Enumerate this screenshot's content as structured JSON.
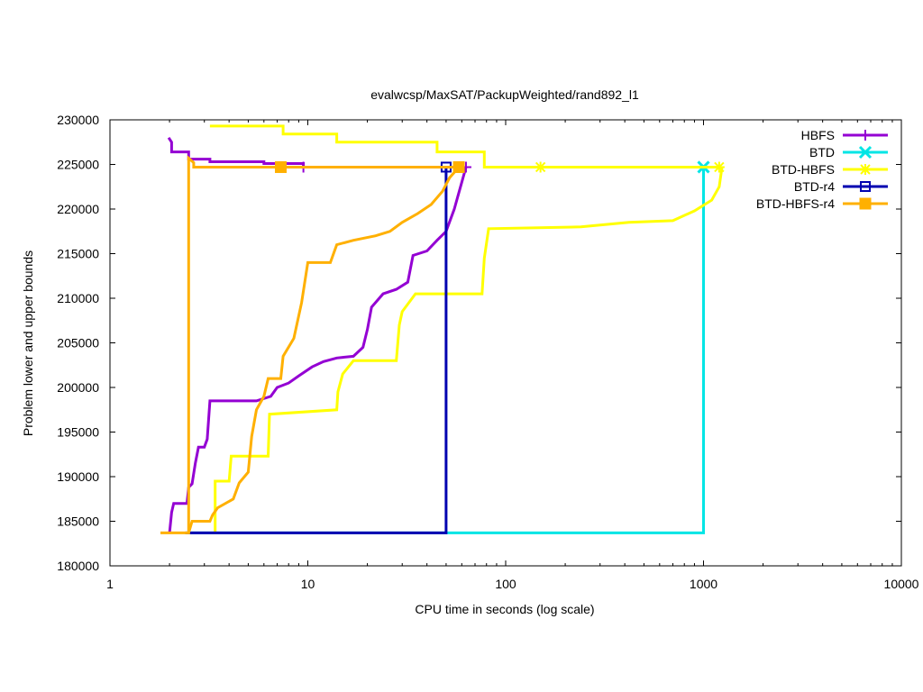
{
  "chart_data": {
    "type": "line",
    "title": "evalwcsp/MaxSAT/PackupWeighted/rand892_l1",
    "xlabel": "CPU time in seconds (log scale)",
    "ylabel": "Problem lower and upper bounds",
    "x_scale": "log",
    "xlim": [
      1,
      10000
    ],
    "ylim": [
      180000,
      230000
    ],
    "x_ticks": [
      1,
      10,
      100,
      1000,
      10000
    ],
    "x_tick_labels": [
      "1",
      "10",
      "100",
      "1000",
      "10000"
    ],
    "y_ticks": [
      180000,
      185000,
      190000,
      195000,
      200000,
      205000,
      210000,
      215000,
      220000,
      225000,
      230000
    ],
    "y_tick_labels": [
      "180000",
      "185000",
      "190000",
      "195000",
      "200000",
      "205000",
      "210000",
      "215000",
      "220000",
      "225000",
      "230000"
    ],
    "legend_position": "top-right",
    "series": [
      {
        "name": "HBFS",
        "color": "#9400d3",
        "marker": "plus",
        "upper": [
          [
            1.98,
            228000
          ],
          [
            2.05,
            227500
          ],
          [
            2.05,
            226400
          ],
          [
            2.5,
            226400
          ],
          [
            2.5,
            225600
          ],
          [
            3.2,
            225600
          ],
          [
            3.2,
            225300
          ],
          [
            6.0,
            225300
          ],
          [
            6.0,
            225100
          ],
          [
            9.5,
            225100
          ],
          [
            9.5,
            224700
          ]
        ],
        "lower": [
          [
            2.0,
            183700
          ],
          [
            2.05,
            186000
          ],
          [
            2.1,
            187000
          ],
          [
            2.45,
            187000
          ],
          [
            2.5,
            188800
          ],
          [
            2.6,
            189200
          ],
          [
            2.7,
            191500
          ],
          [
            2.8,
            193300
          ],
          [
            3.0,
            193300
          ],
          [
            3.1,
            194200
          ],
          [
            3.2,
            198500
          ],
          [
            5.5,
            198500
          ],
          [
            6.5,
            199000
          ],
          [
            7.0,
            200000
          ],
          [
            8.0,
            200500
          ],
          [
            9.0,
            201300
          ],
          [
            10.5,
            202300
          ],
          [
            12.0,
            202900
          ],
          [
            14.0,
            203300
          ],
          [
            17.0,
            203500
          ],
          [
            19.0,
            204500
          ],
          [
            20.0,
            206500
          ],
          [
            21.0,
            209000
          ],
          [
            24.0,
            210500
          ],
          [
            28.0,
            211000
          ],
          [
            32.0,
            211800
          ],
          [
            34.0,
            214800
          ],
          [
            40.0,
            215300
          ],
          [
            45.0,
            216500
          ],
          [
            50.0,
            217500
          ],
          [
            55.0,
            220000
          ],
          [
            60.0,
            223000
          ],
          [
            63.0,
            224700
          ]
        ],
        "markers": [
          [
            9.5,
            224700
          ],
          [
            63.0,
            224700
          ]
        ]
      },
      {
        "name": "BTD",
        "color": "#00e5e5",
        "marker": "cross",
        "upper": [
          [
            2.5,
            183700
          ],
          [
            1000,
            183700
          ],
          [
            1000,
            224700
          ]
        ],
        "lower": [],
        "markers": [
          [
            1000,
            224700
          ]
        ]
      },
      {
        "name": "BTD-HBFS",
        "color": "#ffff00",
        "marker": "star",
        "upper": [
          [
            3.2,
            229300
          ],
          [
            7.5,
            229300
          ],
          [
            7.5,
            228400
          ],
          [
            14.0,
            228400
          ],
          [
            14.0,
            227500
          ],
          [
            45.0,
            227500
          ],
          [
            45.0,
            226400
          ],
          [
            78.0,
            226400
          ],
          [
            78.0,
            224700
          ],
          [
            1200,
            224700
          ]
        ],
        "lower": [
          [
            3.4,
            183700
          ],
          [
            3.4,
            189500
          ],
          [
            4.0,
            189500
          ],
          [
            4.1,
            192300
          ],
          [
            6.3,
            192300
          ],
          [
            6.4,
            197000
          ],
          [
            14.0,
            197500
          ],
          [
            14.2,
            199500
          ],
          [
            15.0,
            201500
          ],
          [
            17.0,
            203000
          ],
          [
            28.0,
            203000
          ],
          [
            29.0,
            207000
          ],
          [
            30.0,
            208500
          ],
          [
            35.0,
            210500
          ],
          [
            76.0,
            210500
          ],
          [
            78.0,
            214500
          ],
          [
            82.0,
            217800
          ],
          [
            240.0,
            218000
          ],
          [
            420.0,
            218500
          ],
          [
            700.0,
            218700
          ],
          [
            900.0,
            219800
          ],
          [
            1100.0,
            221000
          ],
          [
            1200.0,
            222500
          ],
          [
            1240.0,
            224700
          ]
        ],
        "markers": [
          [
            150,
            224700
          ],
          [
            1200,
            224700
          ]
        ]
      },
      {
        "name": "BTD-r4",
        "color": "#0000b0",
        "marker": "open-square",
        "upper": [
          [
            2.4,
            183700
          ],
          [
            50.0,
            183700
          ],
          [
            50.0,
            224700
          ]
        ],
        "lower": [],
        "markers": [
          [
            50.0,
            224700
          ]
        ]
      },
      {
        "name": "BTD-HBFS-r4",
        "color": "#ffb000",
        "marker": "filled-square",
        "upper": [
          [
            1.8,
            183700
          ],
          [
            2.5,
            183700
          ],
          [
            2.5,
            225700
          ],
          [
            2.65,
            225200
          ],
          [
            2.65,
            224700
          ],
          [
            58.0,
            224700
          ]
        ],
        "lower": [
          [
            2.5,
            183700
          ],
          [
            2.6,
            185000
          ],
          [
            3.2,
            185000
          ],
          [
            3.3,
            185700
          ],
          [
            3.5,
            186500
          ],
          [
            4.2,
            187500
          ],
          [
            4.5,
            189300
          ],
          [
            5.0,
            190500
          ],
          [
            5.2,
            194500
          ],
          [
            5.5,
            197500
          ],
          [
            6.0,
            199000
          ],
          [
            6.3,
            201000
          ],
          [
            7.3,
            201000
          ],
          [
            7.5,
            203500
          ],
          [
            8.5,
            205500
          ],
          [
            9.3,
            209500
          ],
          [
            10.0,
            214000
          ],
          [
            13.0,
            214000
          ],
          [
            14.0,
            216000
          ],
          [
            17.0,
            216500
          ],
          [
            22.0,
            217000
          ],
          [
            26.0,
            217500
          ],
          [
            30.0,
            218500
          ],
          [
            36.0,
            219500
          ],
          [
            42.0,
            220500
          ],
          [
            48.0,
            222000
          ],
          [
            52.0,
            223500
          ],
          [
            58.0,
            224700
          ]
        ],
        "markers": [
          [
            7.3,
            224700
          ],
          [
            58.0,
            224700
          ]
        ]
      }
    ]
  }
}
